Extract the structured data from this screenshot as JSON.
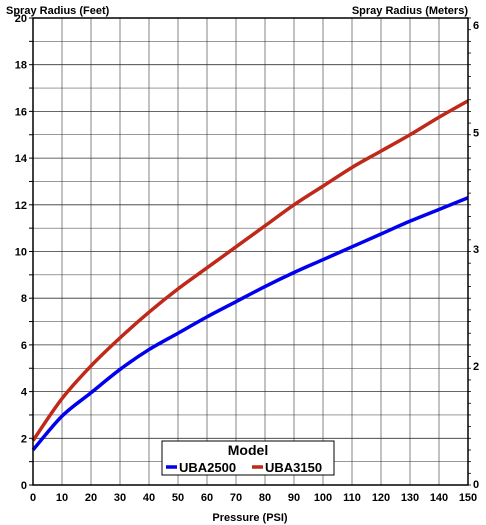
{
  "chart_data": {
    "type": "line",
    "title": "",
    "ylabel_left": "Spray Radius (Feet)",
    "ylabel_right": "Spray Radius (Meters)",
    "xlabel": "Pressure (PSI)",
    "xlim": [
      0,
      150
    ],
    "ylim": [
      0,
      20
    ],
    "y_right_ticks_visible": [
      "6",
      "5",
      "3",
      "2",
      "0"
    ],
    "x_ticks": [
      0,
      10,
      20,
      30,
      40,
      50,
      60,
      70,
      80,
      90,
      100,
      110,
      120,
      130,
      140,
      150
    ],
    "y_ticks": [
      0,
      2,
      4,
      6,
      8,
      10,
      12,
      14,
      16,
      18,
      20
    ],
    "grid": true,
    "legend": {
      "title": "Model",
      "placement": "bottom-center"
    },
    "series": [
      {
        "name": "UBA2500",
        "color": "#0000ee",
        "x": [
          0,
          10,
          20,
          30,
          40,
          50,
          60,
          70,
          80,
          90,
          100,
          110,
          120,
          130,
          140,
          150
        ],
        "y": [
          1.5,
          2.95,
          3.95,
          4.95,
          5.8,
          6.5,
          7.2,
          7.85,
          8.5,
          9.1,
          9.65,
          10.2,
          10.75,
          11.3,
          11.8,
          12.3
        ]
      },
      {
        "name": "UBA3150",
        "color": "#c0281a",
        "x": [
          0,
          10,
          20,
          30,
          40,
          50,
          60,
          70,
          80,
          90,
          100,
          110,
          120,
          130,
          140,
          150
        ],
        "y": [
          1.9,
          3.7,
          5.1,
          6.3,
          7.4,
          8.4,
          9.3,
          10.2,
          11.1,
          12.0,
          12.8,
          13.6,
          14.3,
          15.0,
          15.75,
          16.45
        ]
      }
    ]
  }
}
